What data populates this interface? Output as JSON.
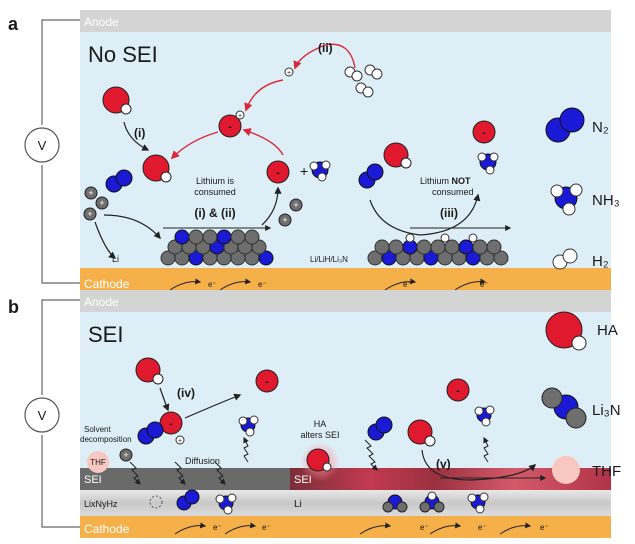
{
  "panel_a": {
    "letter": "a",
    "anode": "Anode",
    "cathode": "Cathode",
    "title": "No SEI",
    "voltage": "V",
    "step_i": "(i)",
    "step_ii": "(ii)",
    "step_i_ii": "(i) & (ii)",
    "step_iii": "(iii)",
    "consumed_line1": "Lithium is",
    "consumed_line2": "consumed",
    "not_consumed_line1a": "Lithium ",
    "not_consumed_line1b": "NOT",
    "not_consumed_line2": "consumed",
    "li_label": "Li",
    "li_mix_label": "Li/LiH/Li₃N",
    "electron": "e⁻",
    "plus": "+",
    "minus": "-"
  },
  "panel_b": {
    "letter": "b",
    "anode": "Anode",
    "cathode": "Cathode",
    "title": "SEI",
    "voltage": "V",
    "step_iv": "(iv)",
    "step_v": "(v)",
    "solvent_line1": "Solvent",
    "solvent_line2": "decomposition",
    "thf": "THF",
    "diffusion": "Diffusion",
    "ha_line1": "HA",
    "ha_line2": "alters SEI",
    "sei_left": "SEI",
    "sei_right": "SEI",
    "linyhz": "LixNyHz",
    "li_label": "Li",
    "electron": "e⁻"
  },
  "legend": [
    {
      "key": "n2",
      "label": "N₂"
    },
    {
      "key": "nh3",
      "label": "NH₃"
    },
    {
      "key": "h2",
      "label": "H₂"
    },
    {
      "key": "ha",
      "label": "HA"
    },
    {
      "key": "li3n",
      "label": "Li₃N"
    },
    {
      "key": "thf",
      "label": "THF"
    }
  ],
  "colors": {
    "anode": "#d4d4d4",
    "electrolyte": "#ddeef6",
    "cathode": "#f5b04a",
    "lithium": "#6e6e6e",
    "nitrogen": "#1a1ad6",
    "ha": "#e0192e",
    "hydrogen": "#ffffff",
    "thf": "#f8c8c0",
    "sei": "#6a6a6a",
    "arrow_red": "#d8293c"
  }
}
